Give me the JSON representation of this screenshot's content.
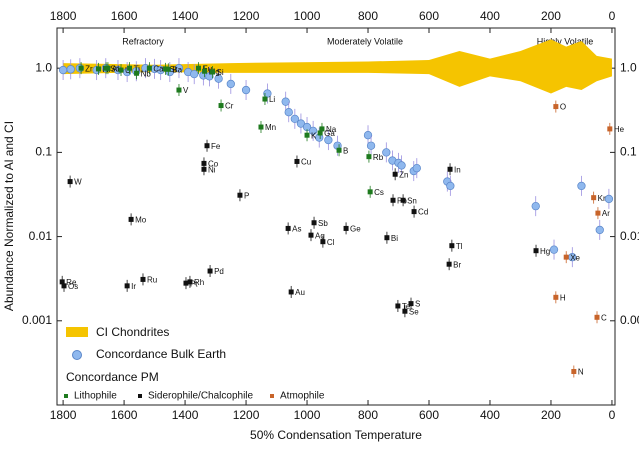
{
  "chart_data": {
    "type": "scatter",
    "log_y": true,
    "xlabel": "50% Condensation Temperature",
    "ylabel": "Abundance Normalized to Al and CI",
    "annotations": [
      "Refractory",
      "Moderately Volatile",
      "Highly Volatile"
    ],
    "legend_group_title": "Concordance PM",
    "xlim": [
      1820,
      -10
    ],
    "xticks": [
      1800,
      1600,
      1400,
      1200,
      1000,
      800,
      600,
      400,
      200,
      0
    ],
    "ylim": [
      0.0001,
      3
    ],
    "yticks": [
      {
        "value": 1,
        "label": "1.0"
      },
      0.1,
      0.01,
      0.001
    ],
    "series": [
      {
        "name": "CI Chondrites",
        "kind": "band",
        "color": "#f5c400",
        "x": [
          1800,
          1500,
          1250,
          800,
          600,
          500,
          400,
          300,
          200,
          150,
          100,
          50,
          0
        ],
        "lower": [
          0.85,
          0.9,
          0.88,
          0.88,
          0.85,
          0.6,
          0.8,
          0.7,
          0.5,
          0.6,
          0.55,
          0.7,
          0.8
        ],
        "upper": [
          1.15,
          1.1,
          1.15,
          1.2,
          1.25,
          1.6,
          1.3,
          1.6,
          2.2,
          1.8,
          2.1,
          1.4,
          1.3
        ]
      },
      {
        "name": "Concordance Bulk Earth",
        "kind": "circle",
        "color": "#8fb8ee",
        "x": [
          1800,
          1775,
          1745,
          1690,
          1660,
          1620,
          1590,
          1560,
          1530,
          1500,
          1480,
          1450,
          1420,
          1390,
          1370,
          1340,
          1320,
          1290,
          1250,
          1200,
          1130,
          1070,
          1060,
          1040,
          1020,
          1000,
          980,
          960,
          930,
          900,
          800,
          790,
          740,
          720,
          700,
          690,
          650,
          640,
          540,
          530,
          250,
          190,
          130,
          100,
          40,
          10
        ],
        "values": [
          0.95,
          0.97,
          1.0,
          0.95,
          1.0,
          0.95,
          0.9,
          0.92,
          1.0,
          0.98,
          0.95,
          0.9,
          1.0,
          0.9,
          0.85,
          0.82,
          0.8,
          0.75,
          0.65,
          0.55,
          0.5,
          0.4,
          0.3,
          0.25,
          0.22,
          0.2,
          0.18,
          0.15,
          0.14,
          0.12,
          0.16,
          0.12,
          0.1,
          0.08,
          0.075,
          0.07,
          0.06,
          0.065,
          0.045,
          0.04,
          0.023,
          0.007,
          0.0057,
          0.04,
          0.012,
          0.028
        ]
      },
      {
        "name": "Lithophile",
        "kind": "square",
        "color": "#1e7a1e",
        "x": [
          1741,
          1684,
          1659,
          1653,
          1610,
          1582,
          1559,
          1517,
          1464,
          1455,
          1420,
          1356,
          1336,
          1310,
          1282,
          1151,
          1138,
          1000,
          957,
          951,
          895,
          797,
          793
        ],
        "values": [
          1.0,
          0.98,
          1.0,
          1.0,
          0.95,
          1.0,
          0.87,
          1.0,
          0.98,
          0.97,
          0.55,
          1.0,
          0.92,
          0.9,
          0.36,
          0.2,
          0.43,
          0.16,
          0.17,
          0.19,
          0.106,
          0.089,
          0.034
        ],
        "labels": [
          "Zr",
          "Hf",
          "Sc",
          "Al",
          "U",
          "Ti",
          "Nb",
          "Ca",
          "Sr",
          "Ba",
          "V",
          "Eu",
          "Mg",
          "Si",
          "Cr",
          "Mn",
          "Li",
          "K",
          "Ga",
          "Na",
          "B",
          "Rb",
          "Cs"
        ]
      },
      {
        "name": "Siderophile/Chalcophile",
        "kind": "square",
        "color": "#111111",
        "x": [
          1777,
          1803,
          1797,
          1577,
          1590,
          1538,
          1397,
          1384,
          1318,
          1328,
          1338,
          1338,
          1220,
          1033,
          1062,
          977,
          987,
          948,
          872,
          1052,
          738,
          718,
          685,
          649,
          531,
          525,
          534,
          702,
          679,
          659,
          249,
          711
        ],
        "values": [
          0.045,
          0.0029,
          0.0026,
          0.016,
          0.0026,
          0.0031,
          0.0028,
          0.0029,
          0.0039,
          0.12,
          0.074,
          0.063,
          0.031,
          0.078,
          0.0125,
          0.0146,
          0.0104,
          0.0087,
          0.0125,
          0.0022,
          0.0097,
          0.027,
          0.027,
          0.0198,
          0.063,
          0.0078,
          0.0047,
          0.0015,
          0.0013,
          0.0016,
          0.0068,
          0.055
        ],
        "labels": [
          "W",
          "Re",
          "Os",
          "Mo",
          "Ir",
          "Ru",
          "Pt",
          "Rh",
          "Pd",
          "Fe",
          "Co",
          "Ni",
          "P",
          "Cu",
          "As",
          "Sb",
          "Ag",
          "Cl",
          "Ge",
          "Au",
          "Bi",
          "Pb",
          "Sn",
          "Cd",
          "In",
          "Tl",
          "Br",
          "Te",
          "Se",
          "S",
          "Hg",
          "Zn"
        ]
      },
      {
        "name": "Atmophile",
        "kind": "square",
        "color": "#c8642a",
        "x": [
          184,
          125,
          49,
          46,
          60,
          150,
          184,
          7
        ],
        "values": [
          0.0019,
          0.00025,
          0.0011,
          0.019,
          0.029,
          0.0057,
          0.35,
          0.19
        ],
        "labels": [
          "H",
          "N",
          "C",
          "Ar",
          "Kr",
          "Xe",
          "O",
          "He"
        ]
      }
    ]
  }
}
